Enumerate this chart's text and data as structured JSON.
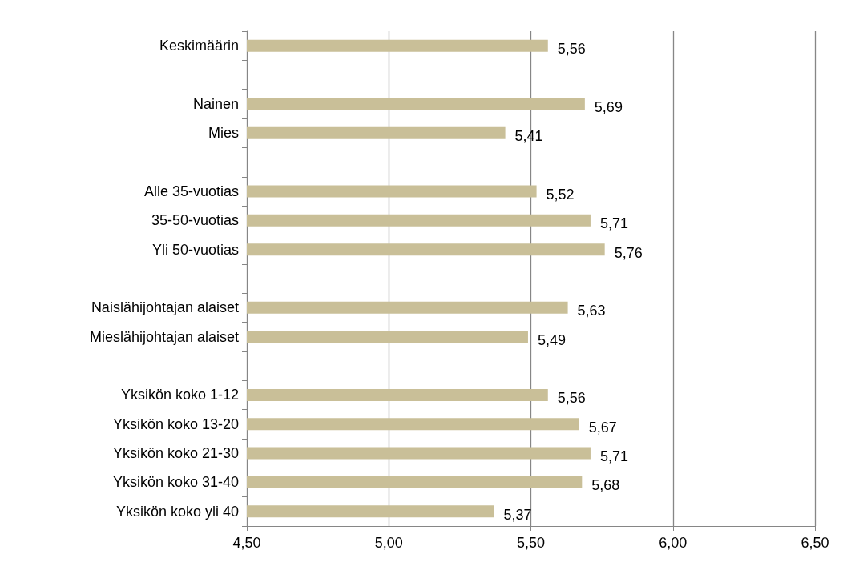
{
  "chart_data": {
    "type": "bar",
    "orientation": "horizontal",
    "categories": [
      "Keskimäärin",
      null,
      "Nainen",
      "Mies",
      null,
      "Alle 35-vuotias",
      "35-50-vuotias",
      "Yli 50-vuotias",
      null,
      "Naislähijohtajan alaiset",
      "Mieslähijohtajan alaiset",
      null,
      "Yksikön koko 1-12",
      "Yksikön koko 13-20",
      "Yksikön koko 21-30",
      "Yksikön koko 31-40",
      "Yksikön koko yli 40"
    ],
    "values": [
      5.56,
      null,
      5.69,
      5.41,
      null,
      5.52,
      5.71,
      5.76,
      null,
      5.63,
      5.49,
      null,
      5.56,
      5.67,
      5.71,
      5.68,
      5.37
    ],
    "value_labels": [
      "5,56",
      null,
      "5,69",
      "5,41",
      null,
      "5,52",
      "5,71",
      "5,76",
      null,
      "5,63",
      "5,49",
      null,
      "5,56",
      "5,67",
      "5,71",
      "5,68",
      "5,37"
    ],
    "color": "#c9bf98",
    "xlim": [
      4.5,
      6.5
    ],
    "xticks": [
      {
        "value": 4.5,
        "label": "4,50"
      },
      {
        "value": 5,
        "label": "5,00"
      },
      {
        "value": 5.5,
        "label": "5,50"
      },
      {
        "value": 6,
        "label": "6,00"
      },
      {
        "value": 6.5,
        "label": "6,50"
      }
    ],
    "grid": "x"
  }
}
